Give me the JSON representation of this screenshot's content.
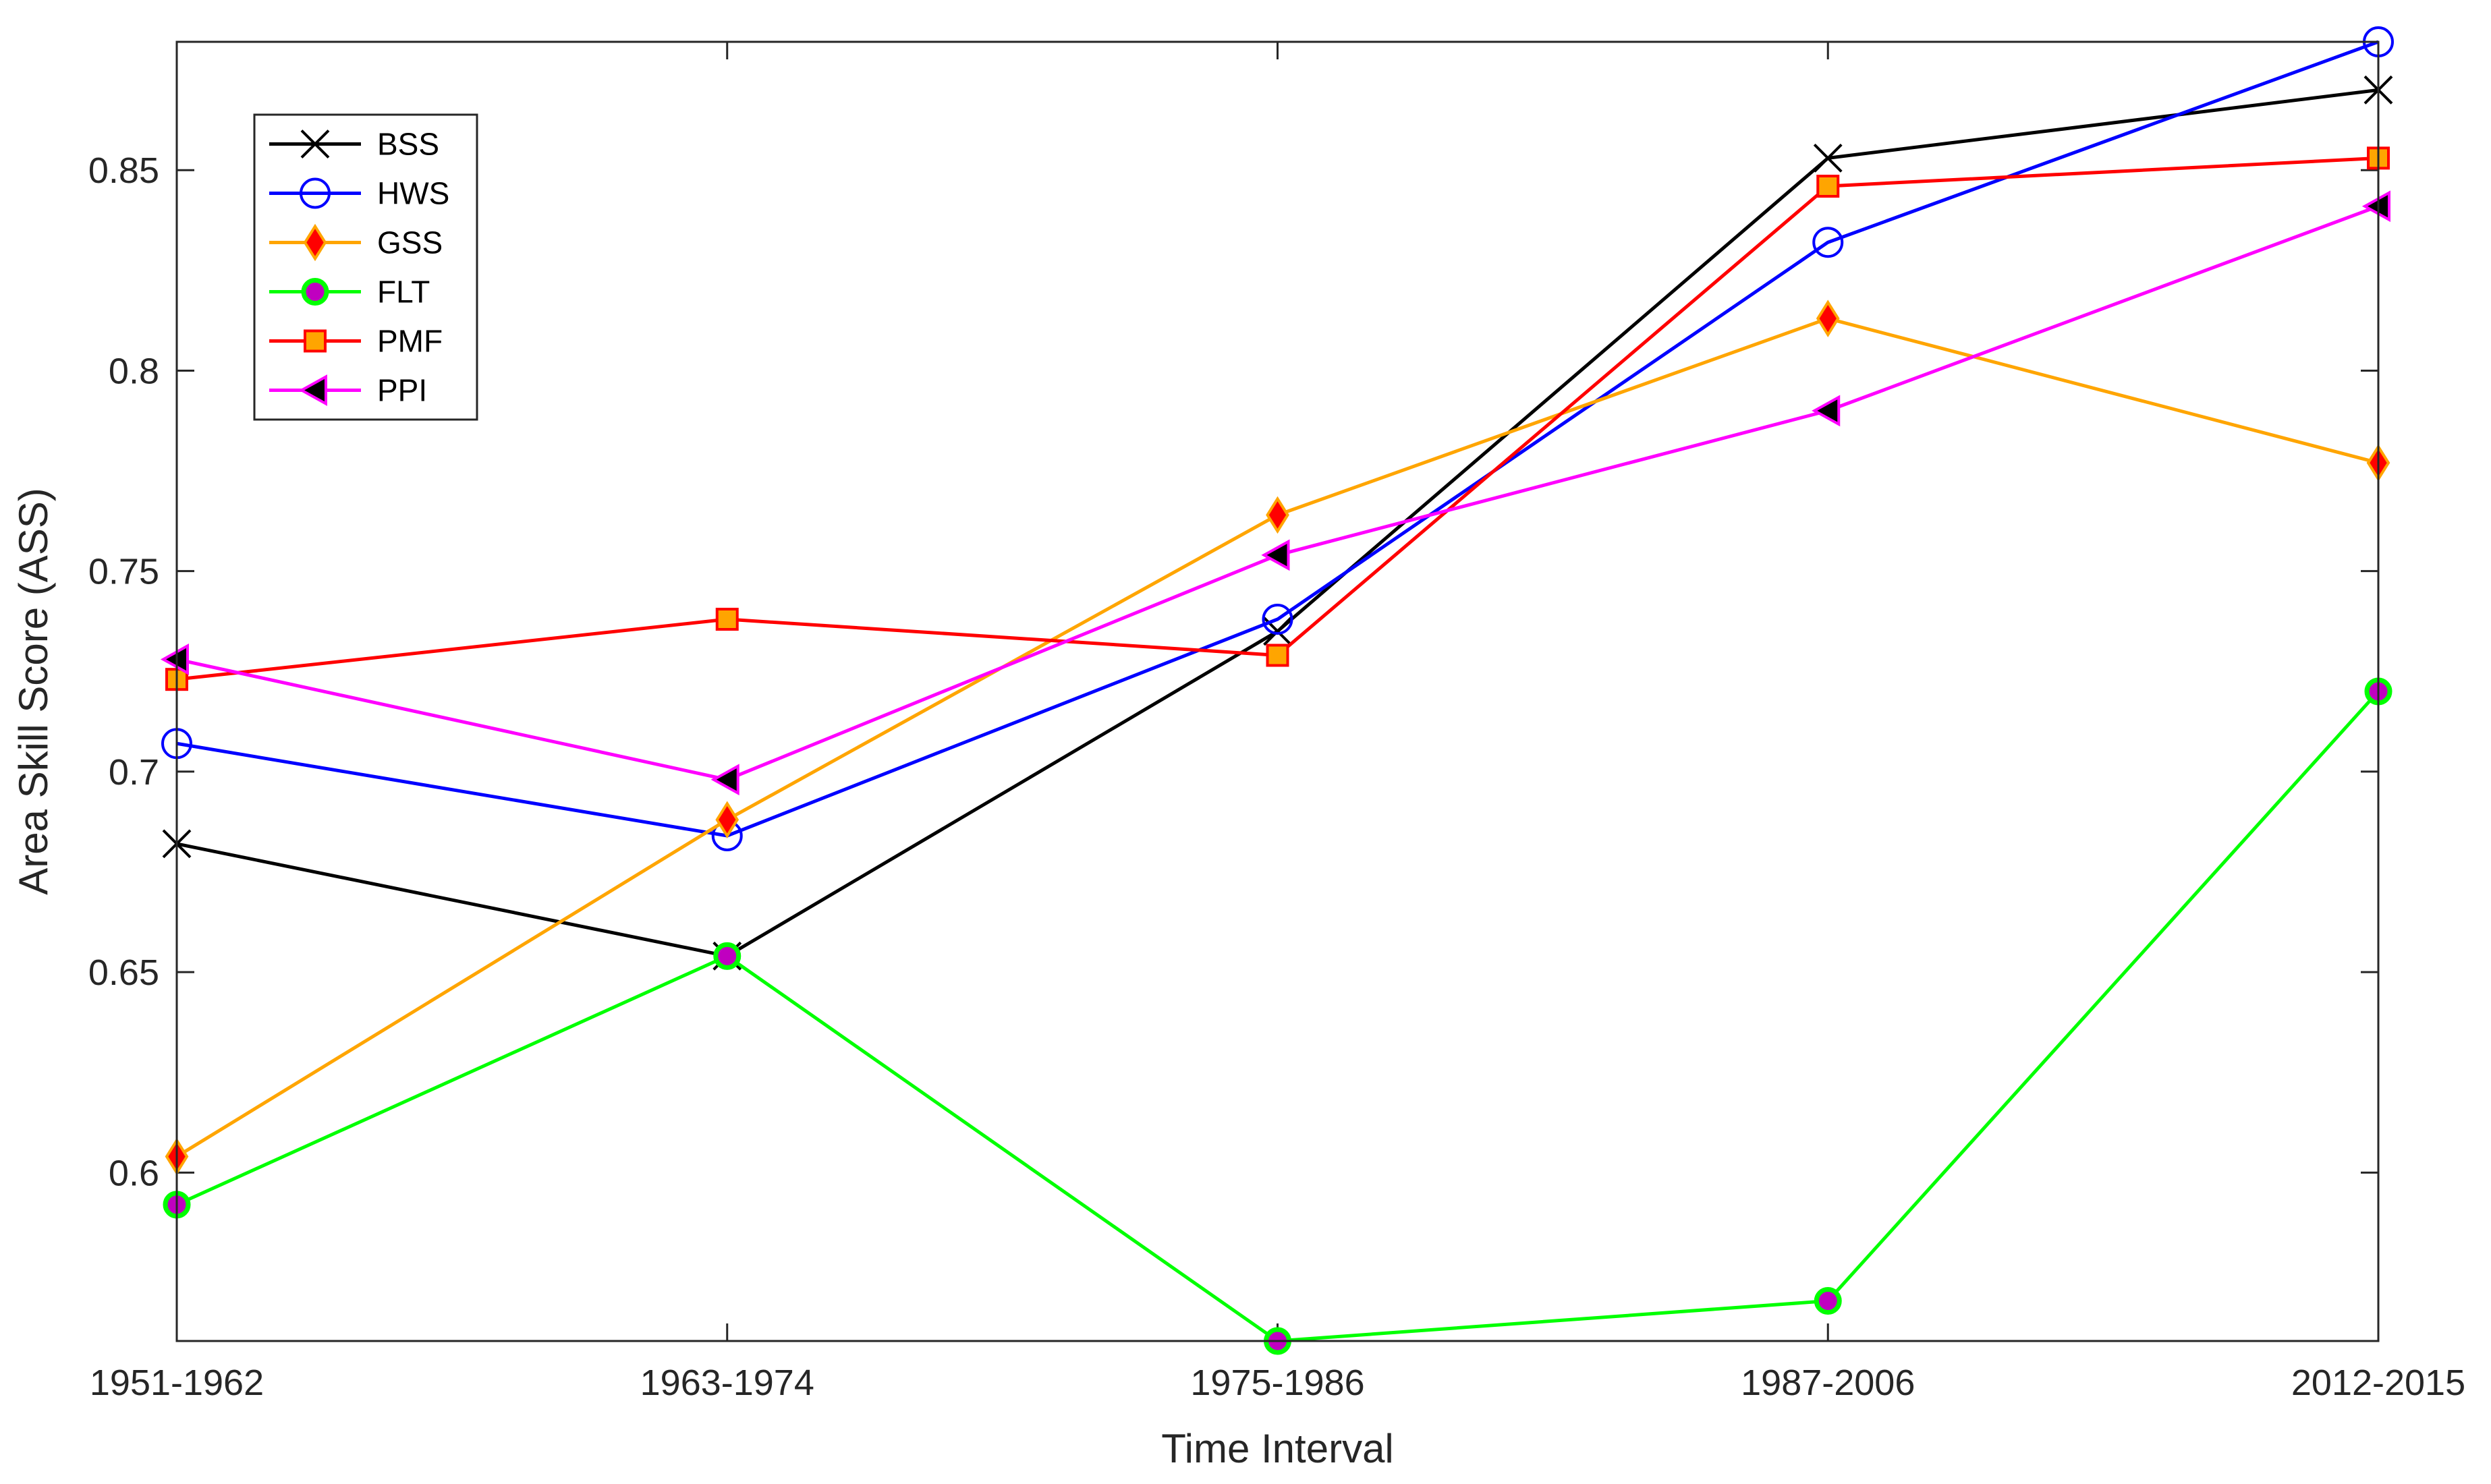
{
  "chart_data": {
    "type": "line",
    "title": "",
    "xlabel": "Time Interval",
    "ylabel": "Area Skill Score (ASS)",
    "categories": [
      "1951-1962",
      "1963-1974",
      "1975-1986",
      "1987-2006",
      "2012-2015"
    ],
    "ylim": [
      0.558,
      0.882
    ],
    "yticks": [
      0.6,
      0.65,
      0.7,
      0.75,
      0.8,
      0.85
    ],
    "ytick_labels": [
      "0.6",
      "0.65",
      "0.7",
      "0.75",
      "0.8",
      "0.85"
    ],
    "grid": false,
    "legend_position": "top-left",
    "series": [
      {
        "name": "BSS",
        "values": [
          0.682,
          0.654,
          0.735,
          0.853,
          0.87
        ],
        "color": "#000000",
        "marker": "x",
        "marker_edge": "#000000",
        "marker_fill": "none"
      },
      {
        "name": "HWS",
        "values": [
          0.707,
          0.684,
          0.738,
          0.832,
          0.882
        ],
        "color": "#0000ff",
        "marker": "circle",
        "marker_edge": "#0000ff",
        "marker_fill": "none"
      },
      {
        "name": "GSS",
        "values": [
          0.604,
          0.688,
          0.764,
          0.813,
          0.777
        ],
        "color": "#ffa500",
        "marker": "diamond",
        "marker_edge": "#ffa500",
        "marker_fill": "#ff0000"
      },
      {
        "name": "FLT",
        "values": [
          0.592,
          0.654,
          0.558,
          0.568,
          0.72
        ],
        "color": "#00ff00",
        "marker": "circle-filled",
        "marker_edge": "#00ff00",
        "marker_fill": "#c000c0"
      },
      {
        "name": "PMF",
        "values": [
          0.723,
          0.738,
          0.729,
          0.846,
          0.853
        ],
        "color": "#ff0000",
        "marker": "square",
        "marker_edge": "#ff0000",
        "marker_fill": "#ffa500"
      },
      {
        "name": "PPI",
        "values": [
          0.728,
          0.698,
          0.754,
          0.79,
          0.841
        ],
        "color": "#ff00ff",
        "marker": "triangle-left",
        "marker_edge": "#ff00ff",
        "marker_fill": "#000000"
      }
    ]
  }
}
